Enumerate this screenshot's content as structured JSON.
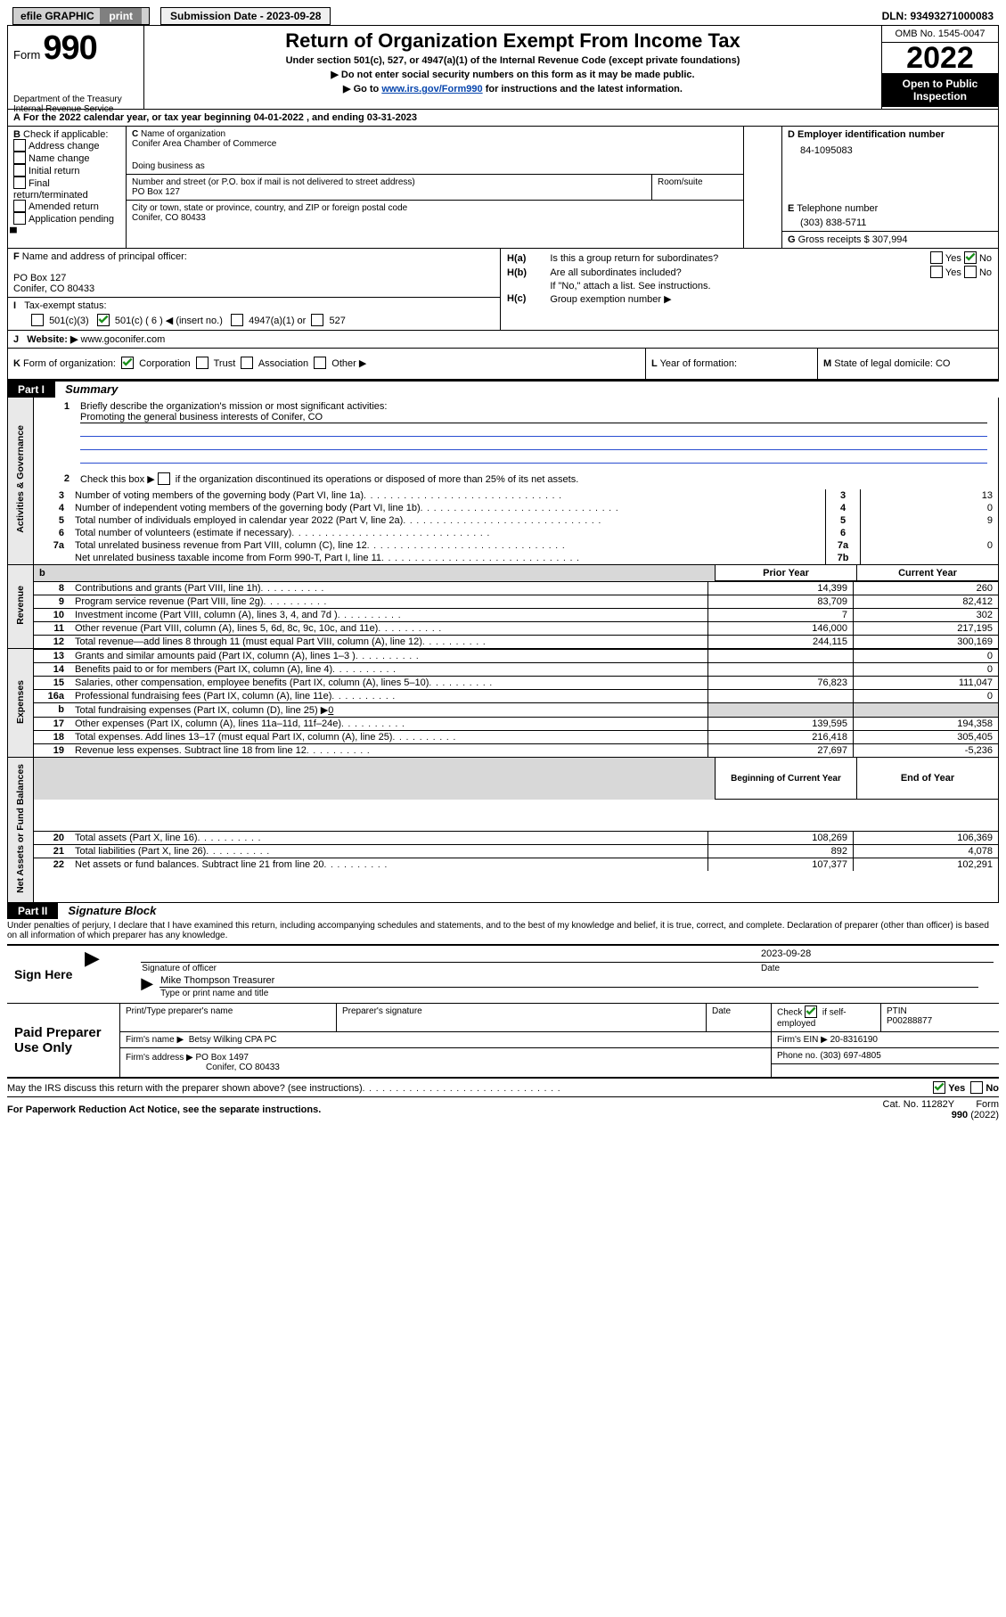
{
  "topbar": {
    "efile": "efile GRAPHIC",
    "print": "print",
    "subdate_label": "Submission Date - 2023-09-28",
    "dln": "DLN: 93493271000083"
  },
  "header": {
    "form_word": "Form",
    "form_num": "990",
    "dept": "Department of the Treasury",
    "irs": "Internal Revenue Service",
    "title": "Return of Organization Exempt From Income Tax",
    "sub1": "Under section 501(c), 527, or 4947(a)(1) of the Internal Revenue Code (except private foundations)",
    "sub2": "Do not enter social security numbers on this form as it may be made public.",
    "sub3_pre": "Go to ",
    "sub3_link": "www.irs.gov/Form990",
    "sub3_post": " for instructions and the latest information.",
    "omb": "OMB No. 1545-0047",
    "year": "2022",
    "open": "Open to Public Inspection"
  },
  "A": {
    "line": "For the 2022 calendar year, or tax year beginning 04-01-2022   , and ending 03-31-2023"
  },
  "B": {
    "label": "Check if applicable:",
    "opts": [
      "Address change",
      "Name change",
      "Initial return",
      "Final return/terminated",
      "Amended return",
      "Application pending"
    ]
  },
  "C": {
    "name_lbl": "Name of organization",
    "name": "Conifer Area Chamber of Commerce",
    "dba_lbl": "Doing business as",
    "addr_lbl": "Number and street (or P.O. box if mail is not delivered to street address)",
    "room_lbl": "Room/suite",
    "addr": "PO Box 127",
    "city_lbl": "City or town, state or province, country, and ZIP or foreign postal code",
    "city": "Conifer, CO  80433"
  },
  "D": {
    "lbl": "Employer identification number",
    "val": "84-1095083"
  },
  "E": {
    "lbl": "Telephone number",
    "val": "(303) 838-5711"
  },
  "G": {
    "lbl": "Gross receipts $",
    "val": "307,994"
  },
  "F": {
    "lbl": "Name and address of principal officer:",
    "l1": "PO Box 127",
    "l2": "Conifer, CO  80433"
  },
  "H": {
    "a": "Is this a group return for subordinates?",
    "b": "Are all subordinates included?",
    "b2": "If \"No,\" attach a list. See instructions.",
    "c": "Group exemption number ▶",
    "yes": "Yes",
    "no": "No"
  },
  "I": {
    "lbl": "Tax-exempt status:",
    "o1": "501(c)(3)",
    "o2_a": "501(c) (",
    "o2_b": "6",
    "o2_c": ") ◀ (insert no.)",
    "o3": "4947(a)(1) or",
    "o4": "527"
  },
  "J": {
    "lbl": "Website: ▶",
    "val": "www.goconifer.com"
  },
  "K": {
    "lbl": "Form of organization:",
    "o1": "Corporation",
    "o2": "Trust",
    "o3": "Association",
    "o4": "Other ▶"
  },
  "L": {
    "lbl": "Year of formation:"
  },
  "M": {
    "lbl": "State of legal domicile: CO"
  },
  "part1": {
    "tab": "Part I",
    "title": "Summary",
    "vlabels": {
      "ag": "Activities & Governance",
      "rev": "Revenue",
      "exp": "Expenses",
      "na": "Net Assets or Fund Balances"
    },
    "l1_lbl": "Briefly describe the organization's mission or most significant activities:",
    "l1": "Promoting the general business interests of Conifer, CO",
    "l2": "Check this box ▶",
    "l2b": "if the organization discontinued its operations or disposed of more than 25% of its net assets.",
    "rows_top": [
      {
        "n": "3",
        "t": "Number of voting members of the governing body (Part VI, line 1a)",
        "k": "3",
        "v": "13"
      },
      {
        "n": "4",
        "t": "Number of independent voting members of the governing body (Part VI, line 1b)",
        "k": "4",
        "v": "0"
      },
      {
        "n": "5",
        "t": "Total number of individuals employed in calendar year 2022 (Part V, line 2a)",
        "k": "5",
        "v": "9"
      },
      {
        "n": "6",
        "t": "Total number of volunteers (estimate if necessary)",
        "k": "6",
        "v": ""
      },
      {
        "n": "7a",
        "t": "Total unrelated business revenue from Part VIII, column (C), line 12",
        "k": "7a",
        "v": "0"
      },
      {
        "n": "",
        "t": "Net unrelated business taxable income from Form 990-T, Part I, line 11",
        "k": "7b",
        "v": ""
      }
    ],
    "col_hdr1": "Prior Year",
    "col_hdr2": "Current Year",
    "rows_rev": [
      {
        "n": "8",
        "t": "Contributions and grants (Part VIII, line 1h)",
        "p": "14,399",
        "c": "260"
      },
      {
        "n": "9",
        "t": "Program service revenue (Part VIII, line 2g)",
        "p": "83,709",
        "c": "82,412"
      },
      {
        "n": "10",
        "t": "Investment income (Part VIII, column (A), lines 3, 4, and 7d )",
        "p": "7",
        "c": "302"
      },
      {
        "n": "11",
        "t": "Other revenue (Part VIII, column (A), lines 5, 6d, 8c, 9c, 10c, and 11e)",
        "p": "146,000",
        "c": "217,195"
      },
      {
        "n": "12",
        "t": "Total revenue—add lines 8 through 11 (must equal Part VIII, column (A), line 12)",
        "p": "244,115",
        "c": "300,169"
      }
    ],
    "rows_exp": [
      {
        "n": "13",
        "t": "Grants and similar amounts paid (Part IX, column (A), lines 1–3 )",
        "p": "",
        "c": "0"
      },
      {
        "n": "14",
        "t": "Benefits paid to or for members (Part IX, column (A), line 4)",
        "p": "",
        "c": "0"
      },
      {
        "n": "15",
        "t": "Salaries, other compensation, employee benefits (Part IX, column (A), lines 5–10)",
        "p": "76,823",
        "c": "111,047"
      },
      {
        "n": "16a",
        "t": "Professional fundraising fees (Part IX, column (A), line 11e)",
        "p": "",
        "c": "0"
      },
      {
        "n": "b",
        "t": "Total fundraising expenses (Part IX, column (D), line 25) ▶0",
        "p": null,
        "c": null
      },
      {
        "n": "17",
        "t": "Other expenses (Part IX, column (A), lines 11a–11d, 11f–24e)",
        "p": "139,595",
        "c": "194,358"
      },
      {
        "n": "18",
        "t": "Total expenses. Add lines 13–17 (must equal Part IX, column (A), line 25)",
        "p": "216,418",
        "c": "305,405"
      },
      {
        "n": "19",
        "t": "Revenue less expenses. Subtract line 18 from line 12",
        "p": "27,697",
        "c": "-5,236"
      }
    ],
    "col_hdr3": "Beginning of Current Year",
    "col_hdr4": "End of Year",
    "rows_na": [
      {
        "n": "20",
        "t": "Total assets (Part X, line 16)",
        "p": "108,269",
        "c": "106,369"
      },
      {
        "n": "21",
        "t": "Total liabilities (Part X, line 26)",
        "p": "892",
        "c": "4,078"
      },
      {
        "n": "22",
        "t": "Net assets or fund balances. Subtract line 21 from line 20",
        "p": "107,377",
        "c": "102,291"
      }
    ]
  },
  "part2": {
    "tab": "Part II",
    "title": "Signature Block",
    "decl": "Under penalties of perjury, I declare that I have examined this return, including accompanying schedules and statements, and to the best of my knowledge and belief, it is true, correct, and complete. Declaration of preparer (other than officer) is based on all information of which preparer has any knowledge."
  },
  "sign": {
    "here": "Sign Here",
    "sig_lbl": "Signature of officer",
    "date_lbl": "Date",
    "date": "2023-09-28",
    "name": "Mike Thompson Treasurer",
    "name_lbl": "Type or print name and title"
  },
  "paid": {
    "title": "Paid Preparer Use Only",
    "c1": "Print/Type preparer's name",
    "c2": "Preparer's signature",
    "c3": "Date",
    "c4a": "Check",
    "c4b": "if self-employed",
    "c5": "PTIN",
    "c5v": "P00288877",
    "firm_lbl": "Firm's name    ▶",
    "firm": "Betsy Wilking CPA PC",
    "ein_lbl": "Firm's EIN ▶",
    "ein": "20-8316190",
    "addr_lbl": "Firm's address ▶",
    "addr1": "PO Box 1497",
    "addr2": "Conifer, CO  80433",
    "phone_lbl": "Phone no.",
    "phone": "(303) 697-4805"
  },
  "footer": {
    "q": "May the IRS discuss this return with the preparer shown above? (see instructions)",
    "yes": "Yes",
    "no": "No",
    "pra": "For Paperwork Reduction Act Notice, see the separate instructions.",
    "cat": "Cat. No. 11282Y",
    "form": "Form 990 (2022)"
  }
}
